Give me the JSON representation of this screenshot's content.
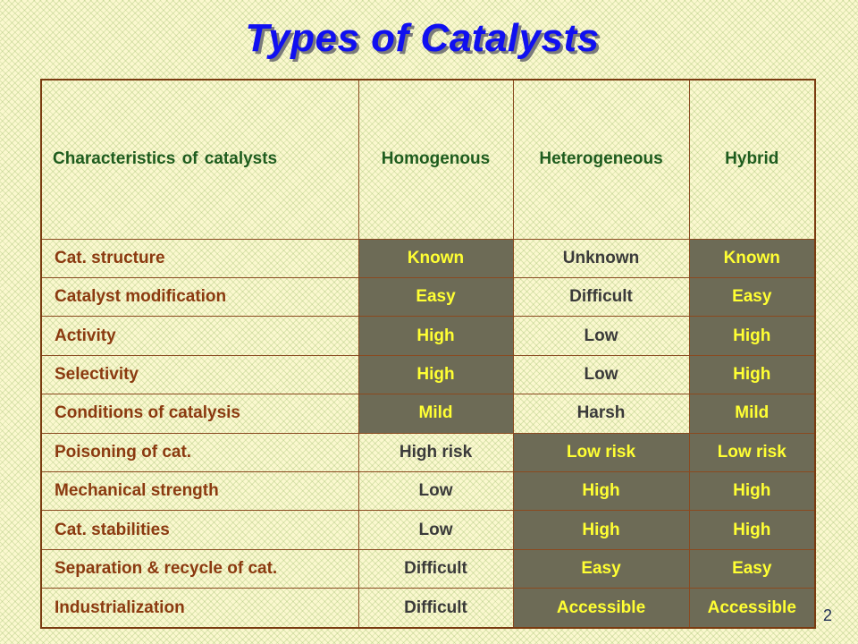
{
  "title": "Types of Catalysts",
  "page_number": "2",
  "colors": {
    "title": "#1010f0",
    "header_text": "#1e5c1e",
    "row_label_text": "#8b3a10",
    "highlight_bg": "#6d6b56",
    "highlight_text": "#ffff33",
    "plain_text": "#3a3a3a",
    "border": "#7a3b10"
  },
  "table": {
    "headers": [
      "Characteristics  of catalysts",
      "Homogenous",
      "Heterogeneous",
      "Hybrid"
    ],
    "rows": [
      {
        "label": "Cat. structure",
        "cells": [
          {
            "text": "Known",
            "highlight": true
          },
          {
            "text": "Unknown",
            "highlight": false
          },
          {
            "text": "Known",
            "highlight": true
          }
        ]
      },
      {
        "label": "Catalyst modification",
        "cells": [
          {
            "text": "Easy",
            "highlight": true
          },
          {
            "text": "Difficult",
            "highlight": false
          },
          {
            "text": "Easy",
            "highlight": true
          }
        ]
      },
      {
        "label": "Activity",
        "cells": [
          {
            "text": "High",
            "highlight": true
          },
          {
            "text": "Low",
            "highlight": false
          },
          {
            "text": "High",
            "highlight": true
          }
        ]
      },
      {
        "label": "Selectivity",
        "cells": [
          {
            "text": "High",
            "highlight": true
          },
          {
            "text": "Low",
            "highlight": false
          },
          {
            "text": "High",
            "highlight": true
          }
        ]
      },
      {
        "label": "Conditions of catalysis",
        "cells": [
          {
            "text": "Mild",
            "highlight": true
          },
          {
            "text": "Harsh",
            "highlight": false
          },
          {
            "text": "Mild",
            "highlight": true
          }
        ]
      },
      {
        "label": "Poisoning of cat.",
        "cells": [
          {
            "text": "High risk",
            "highlight": false
          },
          {
            "text": "Low risk",
            "highlight": true
          },
          {
            "text": "Low risk",
            "highlight": true
          }
        ]
      },
      {
        "label": "Mechanical strength",
        "cells": [
          {
            "text": "Low",
            "highlight": false
          },
          {
            "text": "High",
            "highlight": true
          },
          {
            "text": "High",
            "highlight": true
          }
        ]
      },
      {
        "label": "Cat. stabilities",
        "cells": [
          {
            "text": "Low",
            "highlight": false
          },
          {
            "text": "High",
            "highlight": true
          },
          {
            "text": "High",
            "highlight": true
          }
        ]
      },
      {
        "label": "Separation  &  recycle of cat.",
        "cells": [
          {
            "text": "Difficult",
            "highlight": false
          },
          {
            "text": "Easy",
            "highlight": true
          },
          {
            "text": "Easy",
            "highlight": true
          }
        ]
      },
      {
        "label": "Industrialization",
        "cells": [
          {
            "text": "Difficult",
            "highlight": false
          },
          {
            "text": "Accessible",
            "highlight": true
          },
          {
            "text": "Accessible",
            "highlight": true
          }
        ]
      }
    ]
  }
}
